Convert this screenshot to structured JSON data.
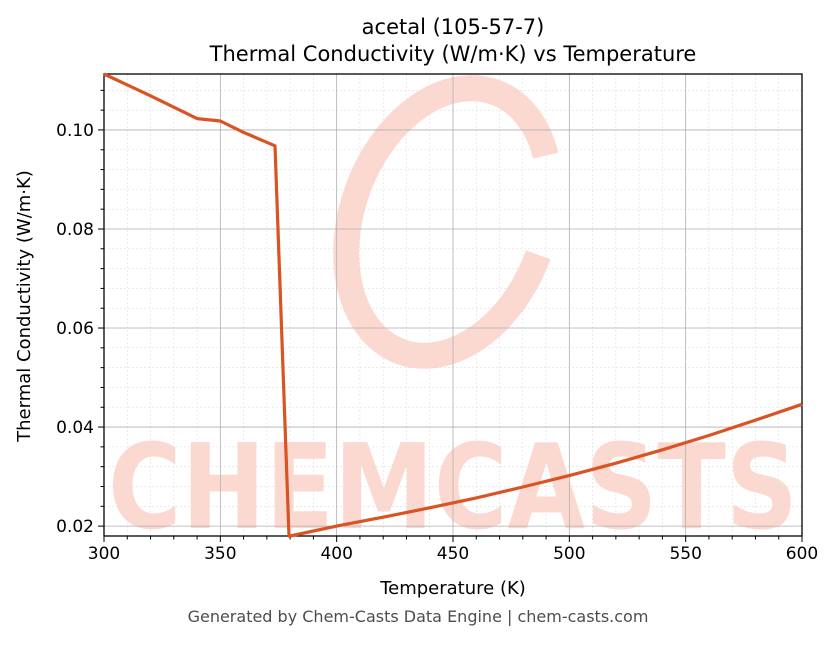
{
  "chart_data": {
    "type": "line",
    "title_line1": "acetal (105-57-7)",
    "title_line2": "Thermal Conductivity (W/m·K) vs Temperature",
    "xlabel": "Temperature (K)",
    "ylabel": "Thermal Conductivity (W/m·K)",
    "xlim": [
      300,
      600
    ],
    "ylim": [
      0.018,
      0.1113
    ],
    "x_ticks": [
      300,
      350,
      400,
      450,
      500,
      550,
      600
    ],
    "y_ticks": [
      0.02,
      0.04,
      0.06,
      0.08,
      0.1
    ],
    "y_tick_labels": [
      "0.02",
      "0.04",
      "0.06",
      "0.08",
      "0.10"
    ],
    "grid": true,
    "line_color": "#d95323",
    "series": [
      {
        "x": [
          300,
          310,
          320,
          330,
          340,
          350,
          360,
          373.5,
          379.5,
          380,
          400,
          420,
          440,
          460,
          480,
          500,
          520,
          540,
          560,
          580,
          600
        ],
        "y": [
          0.1113,
          0.1091,
          0.1069,
          0.1046,
          0.1023,
          0.1018,
          0.0995,
          0.0968,
          0.018,
          0.018,
          0.02,
          0.0218,
          0.0237,
          0.0257,
          0.0279,
          0.0302,
          0.0327,
          0.0354,
          0.0383,
          0.0414,
          0.0446
        ]
      }
    ]
  },
  "watermark": {
    "text": "CHEMCASTS",
    "color": "#fcd9d0"
  },
  "footer": "Generated by Chem-Casts Data Engine | chem-casts.com"
}
